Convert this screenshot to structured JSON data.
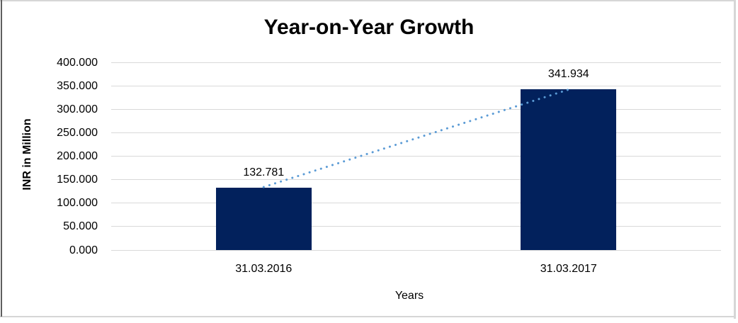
{
  "chart_data": {
    "type": "bar",
    "title": "Year-on-Year Growth",
    "categories": [
      "31.03.2016",
      "31.03.2017"
    ],
    "values": [
      132.781,
      341.934
    ],
    "data_labels": [
      "132.781",
      "341.934"
    ],
    "xlabel": "Years",
    "ylabel": "INR in Million",
    "ylim": [
      0,
      400
    ],
    "ytick_step": 50,
    "ytick_labels": [
      "0.000",
      "50.000",
      "100.000",
      "150.000",
      "200.000",
      "250.000",
      "300.000",
      "350.000",
      "400.000"
    ],
    "grid": true,
    "legend_position": "none",
    "bar_color": "#02215C",
    "gridline_color": "#D9D9D9",
    "text_color": "#000000",
    "trendline": {
      "type": "linear",
      "style": "dotted",
      "color": "#5B9BD5"
    }
  }
}
